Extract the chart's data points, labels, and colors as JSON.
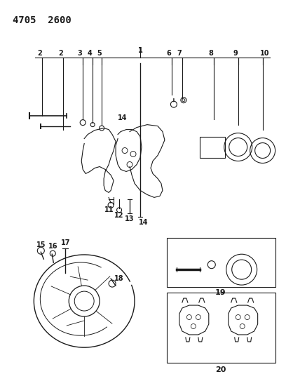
{
  "title": "4705  2600",
  "bg_color": "#ffffff",
  "line_color": "#1a1a1a",
  "fig_width": 4.08,
  "fig_height": 5.33,
  "dpi": 100,
  "label_fontsize": 7,
  "title_fontsize": 10
}
